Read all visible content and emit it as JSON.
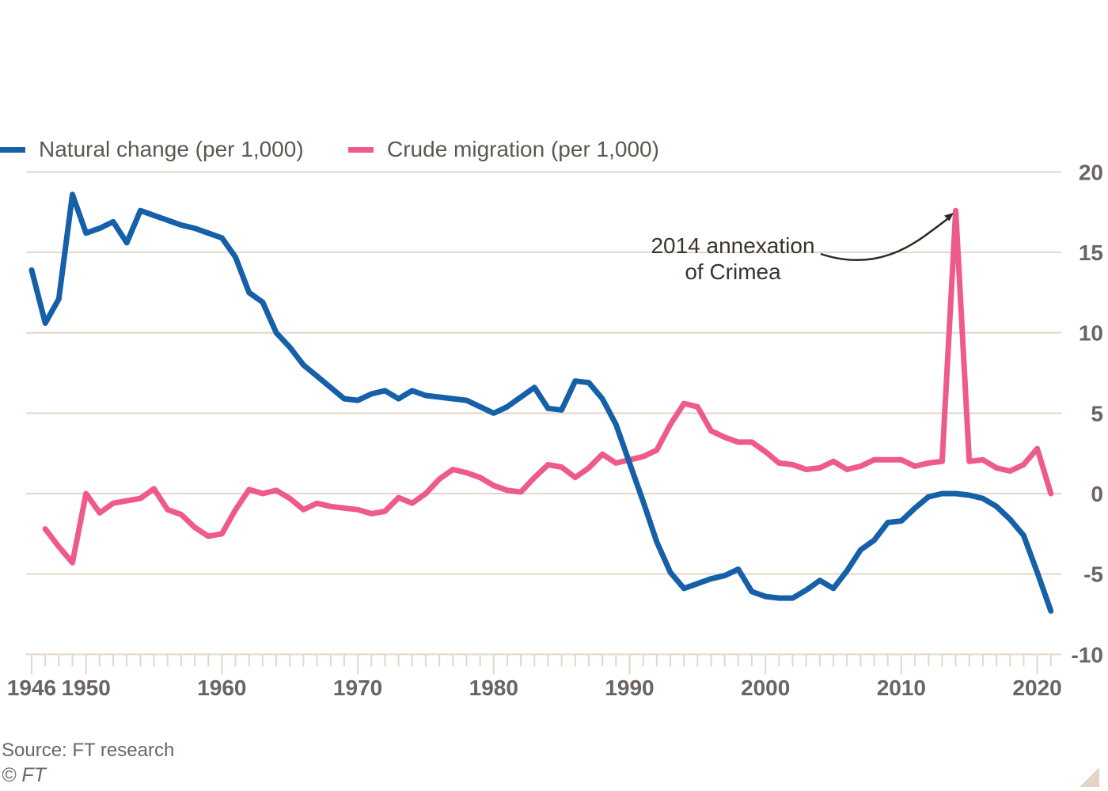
{
  "chart": {
    "legend": {
      "items": [
        {
          "id": "natural-change",
          "label": "Natural change (per 1,000)",
          "color": "#1560a8"
        },
        {
          "id": "crude-migration",
          "label": "Crude migration (per 1,000)",
          "color": "#ee5a8b"
        }
      ],
      "position": "top-left"
    },
    "annotation": {
      "line1": "2014 annexation",
      "line2": "of Crimea"
    },
    "footer": {
      "source": "Source: FT research",
      "copyright": "© FT"
    },
    "colors": {
      "grid": "#e3d7c9",
      "axis_label": "#6b6460",
      "annotation_text": "#3a342e",
      "callout_line": "#2b2723",
      "corner_triangle": "#e3d5c5",
      "background": "#ffffff"
    }
  },
  "chart_data": {
    "type": "line",
    "title": "",
    "xlabel": "",
    "ylabel": "",
    "xlim": [
      1946,
      2021
    ],
    "ylim": [
      -10,
      20
    ],
    "grid": true,
    "legend_position": "top-left",
    "yticks": [
      20,
      15,
      10,
      5,
      0,
      -5,
      -10
    ],
    "xticks": [
      1946,
      1950,
      1960,
      1970,
      1980,
      1990,
      2000,
      2010,
      2020
    ],
    "xtick_labels": [
      "1946",
      "1950",
      "1960",
      "1970",
      "1980",
      "1990",
      "2000",
      "2010",
      "2020"
    ],
    "minor_xtick_interval_years": 1,
    "annotation": {
      "text": "2014 annexation of Crimea",
      "points_to_year": 2014,
      "points_to_value": 17.6
    },
    "series": [
      {
        "id": "natural-change",
        "name": "Natural change (per 1,000)",
        "color": "#1560a8",
        "start_year": 1946,
        "values": [
          13.9,
          10.6,
          12.1,
          18.6,
          16.2,
          16.5,
          16.9,
          15.6,
          17.6,
          17.3,
          17.0,
          16.7,
          16.5,
          16.2,
          15.9,
          14.7,
          12.5,
          11.9,
          10.0,
          9.1,
          8.0,
          7.3,
          6.6,
          5.9,
          5.8,
          6.2,
          6.4,
          5.9,
          6.4,
          6.1,
          6.0,
          5.9,
          5.8,
          5.4,
          5.0,
          5.4,
          6.0,
          6.6,
          5.3,
          5.2,
          7.0,
          6.9,
          5.9,
          4.3,
          1.9,
          -0.5,
          -3.0,
          -4.9,
          -5.9,
          -5.6,
          -5.3,
          -5.1,
          -4.7,
          -6.1,
          -6.4,
          -6.5,
          -6.5,
          -6.0,
          -5.4,
          -5.9,
          -4.8,
          -3.5,
          -2.9,
          -1.8,
          -1.7,
          -0.9,
          -0.2,
          0.0,
          0.0,
          -0.1,
          -0.3,
          -0.8,
          -1.6,
          -2.6,
          -4.9,
          -7.3
        ]
      },
      {
        "id": "crude-migration",
        "name": "Crude migration (per 1,000)",
        "color": "#ee5a8b",
        "start_year": 1947,
        "values": [
          -2.2,
          -3.3,
          -4.3,
          0.0,
          -1.2,
          -0.6,
          -0.45,
          -0.3,
          0.3,
          -1.0,
          -1.3,
          -2.1,
          -2.65,
          -2.5,
          -1.0,
          0.25,
          0.0,
          0.2,
          -0.3,
          -1.0,
          -0.6,
          -0.8,
          -0.9,
          -1.0,
          -1.25,
          -1.1,
          -0.25,
          -0.6,
          0.0,
          0.9,
          1.5,
          1.3,
          1.0,
          0.5,
          0.2,
          0.1,
          1.0,
          1.8,
          1.65,
          1.0,
          1.6,
          2.45,
          1.9,
          2.1,
          2.3,
          2.7,
          4.3,
          5.6,
          5.4,
          3.9,
          3.5,
          3.2,
          3.2,
          2.6,
          1.9,
          1.8,
          1.5,
          1.6,
          2.0,
          1.5,
          1.7,
          2.1,
          2.1,
          2.1,
          1.7,
          1.9,
          2.0,
          17.6,
          2.0,
          2.1,
          1.6,
          1.4,
          1.8,
          2.8,
          0.0
        ]
      }
    ]
  }
}
